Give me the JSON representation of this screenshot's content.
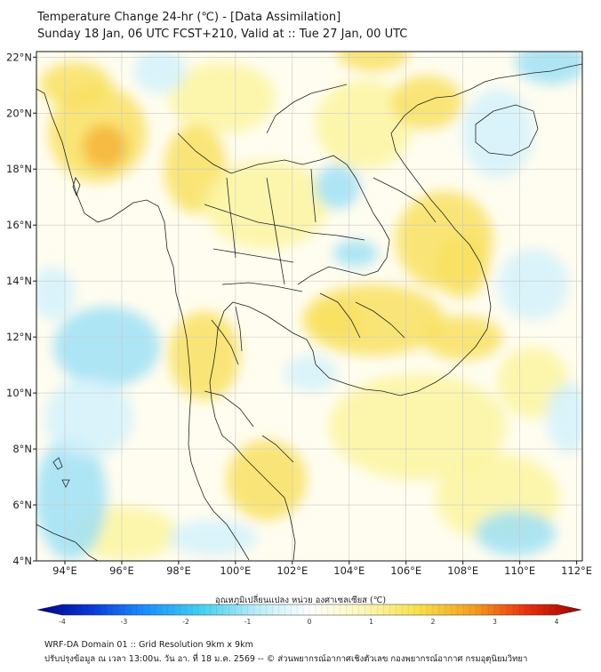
{
  "header": {
    "title": "Temperature Change 24-hr (℃) - [Data Assimilation]",
    "subtitle": "Sunday 18 Jan, 06 UTC FCST+210, Valid at :: Tue 27 Jan, 00 UTC"
  },
  "map": {
    "lon_range": [
      93,
      112.2
    ],
    "lat_range": [
      4,
      22.2
    ],
    "lon_ticks": [
      94,
      96,
      98,
      100,
      102,
      104,
      106,
      108,
      110,
      112
    ],
    "lat_ticks": [
      4,
      6,
      8,
      10,
      12,
      14,
      16,
      18,
      20,
      22
    ],
    "lon_tick_labels": [
      "94°E",
      "96°E",
      "98°E",
      "100°E",
      "102°E",
      "104°E",
      "106°E",
      "108°E",
      "110°E",
      "112°E"
    ],
    "lat_tick_labels": [
      "4°N",
      "6°N",
      "8°N",
      "10°N",
      "12°N",
      "14°N",
      "16°N",
      "18°N",
      "20°N",
      "22°N"
    ],
    "gridlines": true,
    "field_colors": {
      "warm_light": "#fbf4a0",
      "warm": "#f8e060",
      "warm_strong": "#f4b43a",
      "neutral": "#ffffff",
      "cool_light": "#d4f1fb",
      "cool": "#9fe0f6"
    }
  },
  "colorbar": {
    "label": "อุณหภูมิเปลี่ยนแปลง หน่วย องศาเซลเซียส (℃)",
    "range": [
      -4,
      4
    ],
    "tick_labels": [
      "-4",
      "-3",
      "-2",
      "-1",
      "0",
      "1",
      "2",
      "3",
      "4"
    ],
    "colors": [
      "#000080",
      "#0a3ad8",
      "#1e90ff",
      "#40d0f0",
      "#b8ecf8",
      "#ffffff",
      "#fdf7b8",
      "#f8e048",
      "#f4a020",
      "#e83010",
      "#a00000"
    ]
  },
  "footer": {
    "line1": "WRF-DA Domain 01 :: Grid Resolution 9km x 9km",
    "line2": "ปรับปรุงข้อมูล ณ เวลา 13:00น. วัน อา. ที่ 18 ม.ค. 2569 -- © ส่วนพยากรณ์อากาศเชิงตัวเลข กองพยากรณ์อากาศ กรมอุตุนิยมวิทยา"
  }
}
